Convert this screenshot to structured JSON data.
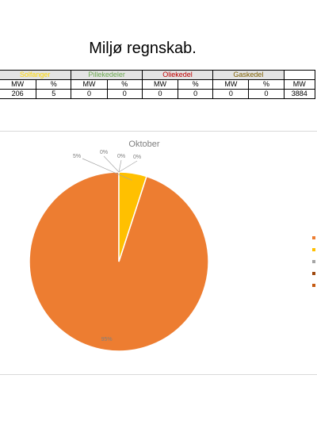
{
  "page": {
    "title": "Miljø regnskab."
  },
  "table": {
    "groups": [
      {
        "label": "Solfanger",
        "color": "#ffd800"
      },
      {
        "label": "Pillekedeler",
        "color": "#6aa84f"
      },
      {
        "label": "Oliekedel",
        "color": "#c00000"
      },
      {
        "label": "Gaskedel",
        "color": "#7f6000"
      },
      {
        "label": "",
        "color": "#000000"
      }
    ],
    "units": [
      "MW",
      "%",
      "MW",
      "%",
      "MW",
      "%",
      "MW",
      "%",
      "MW"
    ],
    "values": [
      "206",
      "5",
      "0",
      "0",
      "0",
      "0",
      "0",
      "0",
      "3884"
    ]
  },
  "chart_data": {
    "type": "pie",
    "title": "Oktober",
    "slices": [
      {
        "label": "95%",
        "value": 95,
        "color": "#ed7d31"
      },
      {
        "label": "5%",
        "value": 5,
        "color": "#ffc000"
      },
      {
        "label": "0%",
        "value": 0,
        "color": "#a5a5a5"
      },
      {
        "label": "0%",
        "value": 0,
        "color": "#9e480e"
      },
      {
        "label": "0%",
        "value": 0,
        "color": "#c55a11"
      }
    ],
    "legend": {
      "position": "right",
      "colors": [
        "#ed7d31",
        "#ffc000",
        "#a5a5a5",
        "#9e480e",
        "#c55a11"
      ]
    },
    "colors": {
      "label_text": "#7f7f7f",
      "leader_line": "#a6a6a6",
      "title_text": "#7f7f7f"
    }
  }
}
